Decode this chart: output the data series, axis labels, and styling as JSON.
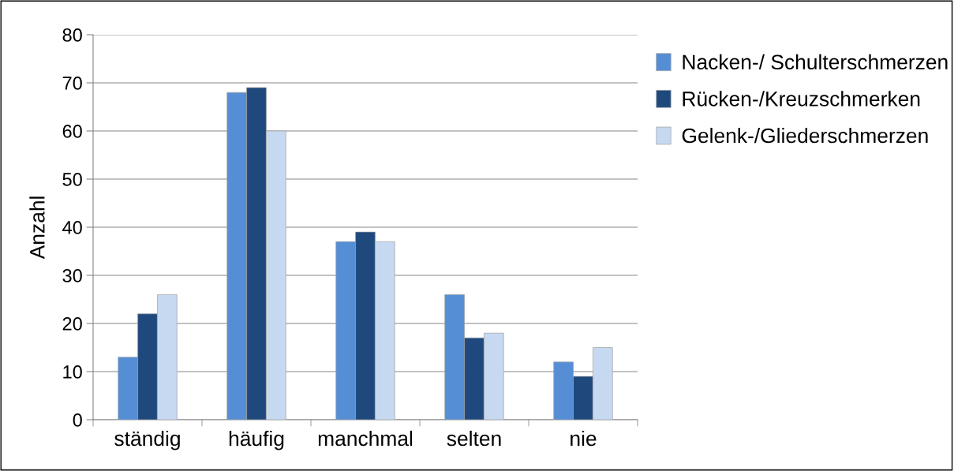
{
  "chart_data": {
    "type": "bar",
    "ylabel": "Anzahl",
    "categories": [
      "ständig",
      "häufig",
      "manchmal",
      "selten",
      "nie"
    ],
    "series": [
      {
        "name": "Nacken-/ Schulterschmerzen",
        "color": "#558ed5",
        "values": [
          13,
          68,
          37,
          26,
          12
        ]
      },
      {
        "name": "Rücken-/Kreuzschmerken",
        "color": "#1f497d",
        "values": [
          22,
          69,
          39,
          17,
          9
        ]
      },
      {
        "name": "Gelenk-/Gliederschmerzen",
        "color": "#c6d9f1",
        "values": [
          26,
          60,
          37,
          18,
          15
        ]
      }
    ],
    "ylim": [
      0,
      80
    ],
    "yticks": [
      0,
      10,
      20,
      30,
      40,
      50,
      60,
      70,
      80
    ],
    "grid": "y",
    "legend": "right"
  }
}
